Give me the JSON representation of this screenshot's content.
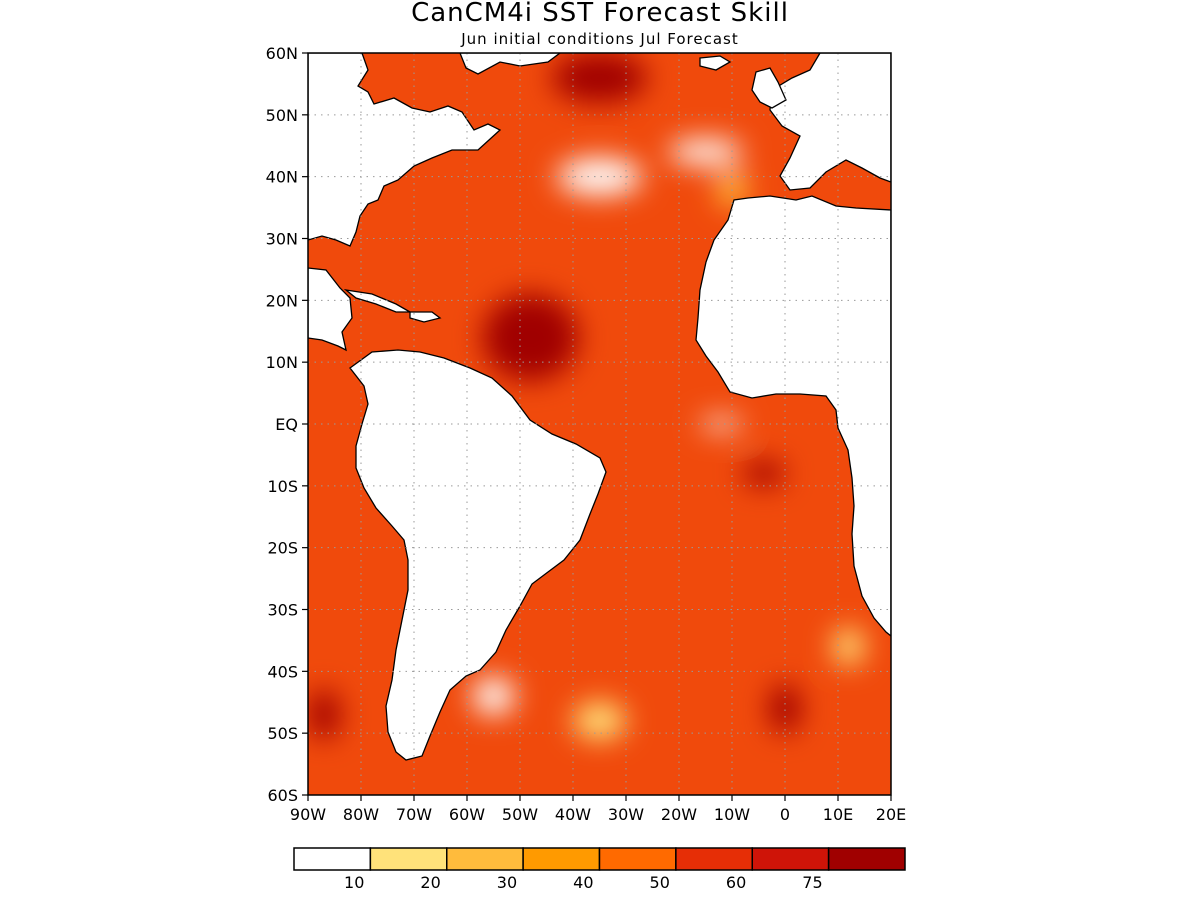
{
  "title": "CanCM4i SST Forecast Skill",
  "subtitle": "Jun initial conditions   Jul Forecast",
  "map": {
    "lon_range": [
      -90,
      20
    ],
    "lat_range": [
      -60,
      60
    ],
    "lat_ticks": [
      {
        "lat": 60,
        "label": "60N"
      },
      {
        "lat": 50,
        "label": "50N"
      },
      {
        "lat": 40,
        "label": "40N"
      },
      {
        "lat": 30,
        "label": "30N"
      },
      {
        "lat": 20,
        "label": "20N"
      },
      {
        "lat": 10,
        "label": "10N"
      },
      {
        "lat": 0,
        "label": "EQ"
      },
      {
        "lat": -10,
        "label": "10S"
      },
      {
        "lat": -20,
        "label": "20S"
      },
      {
        "lat": -30,
        "label": "30S"
      },
      {
        "lat": -40,
        "label": "40S"
      },
      {
        "lat": -50,
        "label": "50S"
      },
      {
        "lat": -60,
        "label": "60S"
      }
    ],
    "lon_ticks": [
      {
        "lon": -90,
        "label": "90W"
      },
      {
        "lon": -80,
        "label": "80W"
      },
      {
        "lon": -70,
        "label": "70W"
      },
      {
        "lon": -60,
        "label": "60W"
      },
      {
        "lon": -50,
        "label": "50W"
      },
      {
        "lon": -40,
        "label": "40W"
      },
      {
        "lon": -30,
        "label": "30W"
      },
      {
        "lon": -20,
        "label": "20W"
      },
      {
        "lon": -10,
        "label": "10W"
      },
      {
        "lon": 0,
        "label": "0"
      },
      {
        "lon": 10,
        "label": "10E"
      },
      {
        "lon": 20,
        "label": "20E"
      }
    ],
    "grid": "dotted",
    "land_color": "#ffffff",
    "ocean_base_color": "#f04a0c",
    "skill_regions": [
      {
        "name": "caribbean-tropical-max",
        "lon": -48,
        "lat": 14,
        "rx": 9,
        "ry": 7,
        "level": "75+"
      },
      {
        "name": "north-atlantic-max",
        "lon": -35,
        "lat": 56,
        "rx": 9,
        "ry": 4,
        "level": "75+"
      },
      {
        "name": "gulf-of-guinea-max",
        "lon": -4,
        "lat": -8,
        "rx": 4,
        "ry": 2,
        "level": "75+"
      },
      {
        "name": "southern-max",
        "lon": 0,
        "lat": -46,
        "rx": 3,
        "ry": 4,
        "level": "75+"
      },
      {
        "name": "pacific-southeast-max",
        "lon": -87,
        "lat": -47,
        "rx": 3,
        "ry": 4,
        "level": "75+"
      },
      {
        "name": "gulf-stream-low",
        "lon": -35,
        "lat": 40,
        "rx": 8,
        "ry": 3,
        "level": "<10"
      },
      {
        "name": "mid-atlantic-low",
        "lon": -15,
        "lat": 44,
        "rx": 7,
        "ry": 2,
        "level": "<10"
      },
      {
        "name": "equatorial-low",
        "lon": -12,
        "lat": 0,
        "rx": 4,
        "ry": 1,
        "level": "<10"
      },
      {
        "name": "patagonia-shelf-low",
        "lon": -55,
        "lat": -44,
        "rx": 4,
        "ry": 3,
        "level": "<10"
      },
      {
        "name": "southern-low",
        "lon": -35,
        "lat": -48,
        "rx": 5,
        "ry": 3,
        "level": "10-20"
      },
      {
        "name": "southwest-africa-low",
        "lon": 12,
        "lat": -36,
        "rx": 3,
        "ry": 3,
        "level": "10-20"
      },
      {
        "name": "iberia-coastal-low",
        "lon": -10,
        "lat": 38,
        "rx": 3,
        "ry": 3,
        "level": "20-30"
      }
    ]
  },
  "colorbar": {
    "colors": [
      "#ffffff",
      "#ffe27a",
      "#ffbb3c",
      "#ff9a00",
      "#ff6a00",
      "#e62e06",
      "#cf1408",
      "#a00000"
    ],
    "labels": [
      "10",
      "20",
      "30",
      "40",
      "50",
      "60",
      "75"
    ]
  }
}
